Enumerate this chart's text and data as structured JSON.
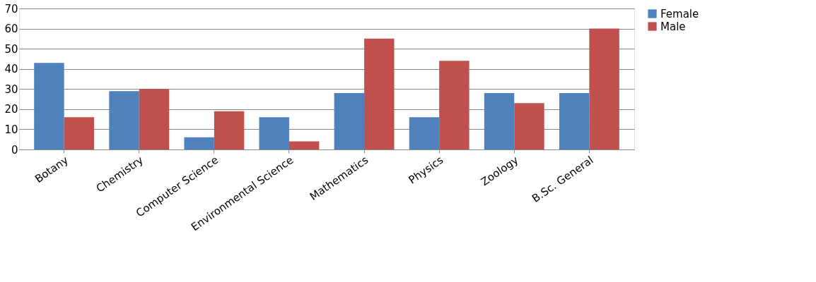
{
  "chart_data": {
    "type": "bar",
    "categories": [
      "Botany",
      "Chemistry",
      "Computer Science",
      "Environmental Science",
      "Mathematics",
      "Physics",
      "Zoology",
      "B.Sc. General"
    ],
    "series": [
      {
        "name": "Female",
        "color": "#4f81bd",
        "values": [
          43,
          29,
          6,
          16,
          28,
          16,
          28,
          28
        ]
      },
      {
        "name": "Male",
        "color": "#c0504d",
        "values": [
          16,
          30,
          19,
          4,
          55,
          44,
          23,
          60
        ]
      }
    ],
    "ylim": [
      0,
      70
    ],
    "yticks": [
      0,
      10,
      20,
      30,
      40,
      50,
      60,
      70
    ],
    "grid": "y",
    "legend": "right"
  }
}
